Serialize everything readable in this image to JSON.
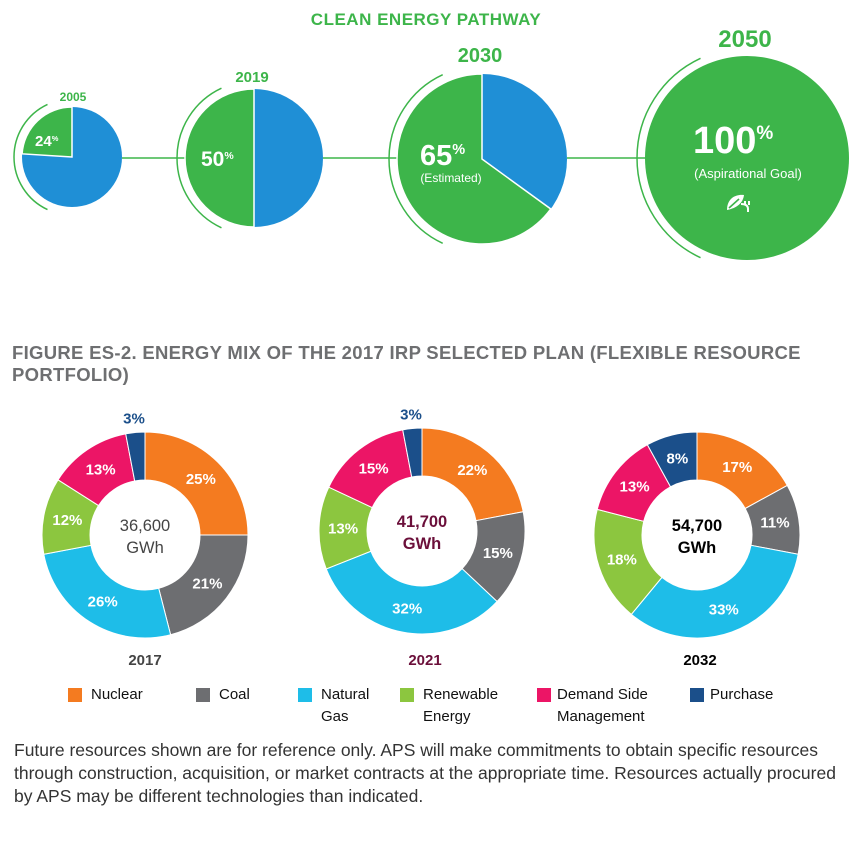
{
  "pathway": {
    "title": "CLEAN ENERGY PATHWAY",
    "milestones": [
      {
        "year": "2005",
        "percent": "24",
        "percent_value": 24
      },
      {
        "year": "2019",
        "percent": "50",
        "percent_value": 50
      },
      {
        "year": "2030",
        "percent": "65",
        "percent_value": 65,
        "note": "(Estimated)"
      },
      {
        "year": "2050",
        "percent": "100",
        "percent_value": 100,
        "note": "(Aspirational Goal)"
      }
    ],
    "percent_sign": "%",
    "colors": {
      "clean": "#3db54a",
      "other": "#1f8fd6"
    },
    "icon": "leaf-plug-icon"
  },
  "figure_title": "FIGURE ES-2. ENERGY MIX OF THE 2017 IRP SELECTED PLAN (FLEXIBLE RESOURCE PORTFOLIO)",
  "chart_data": [
    {
      "type": "pie",
      "subtype": "donut",
      "category": "2017",
      "total": "36,600",
      "unit": "GWh",
      "total_color": "#444444",
      "year_color": "#444444",
      "labels": [
        "Nuclear",
        "Coal",
        "Natural Gas",
        "Renewable Energy",
        "Demand Side Management",
        "Purchase"
      ],
      "values": [
        25,
        21,
        26,
        12,
        13,
        3
      ]
    },
    {
      "type": "pie",
      "subtype": "donut",
      "category": "2021",
      "total": "41,700",
      "unit": "GWh",
      "total_color": "#6b0f3a",
      "year_color": "#6b0f3a",
      "labels": [
        "Nuclear",
        "Coal",
        "Natural Gas",
        "Renewable Energy",
        "Demand Side Management",
        "Purchase"
      ],
      "values": [
        22,
        15,
        32,
        13,
        15,
        3
      ]
    },
    {
      "type": "pie",
      "subtype": "donut",
      "category": "2032",
      "total": "54,700",
      "unit": "GWh",
      "total_color": "#000000",
      "year_color": "#000000",
      "labels": [
        "Nuclear",
        "Coal",
        "Natural Gas",
        "Renewable Energy",
        "Demand Side Management",
        "Purchase"
      ],
      "values": [
        17,
        11,
        33,
        18,
        13,
        8
      ]
    }
  ],
  "legend": [
    {
      "label": "Nuclear",
      "color": "#f47b20"
    },
    {
      "label": "Coal",
      "color": "#6d6e71"
    },
    {
      "label": "Natural Gas",
      "color": "#1ebde8"
    },
    {
      "label": "Renewable Energy",
      "color": "#8cc63f"
    },
    {
      "label": "Demand Side Management",
      "color": "#ec1566"
    },
    {
      "label": "Purchase",
      "color": "#1b4f8a"
    }
  ],
  "purchase_label_color": "#1b4f8a",
  "footnote": "Future resources shown are for reference only. APS will make commitments to obtain specific resources through construction, acquisition, or market contracts at the appropriate time. Resources actually procured by APS may be different technologies than indicated."
}
